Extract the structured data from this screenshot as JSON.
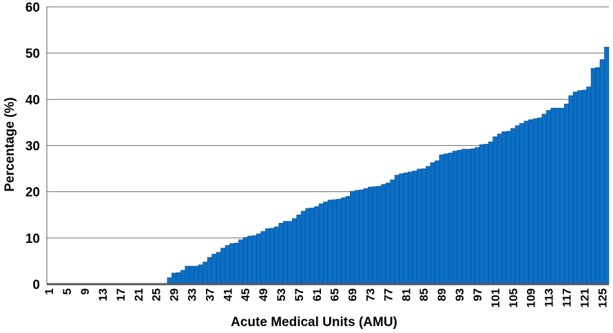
{
  "chart_data": {
    "type": "bar",
    "title": "",
    "xlabel": "Acute Medical Units (AMU)",
    "ylabel": "Percentage (%)",
    "ylim": [
      0,
      60
    ],
    "yticks": [
      0,
      10,
      20,
      30,
      40,
      50,
      60
    ],
    "xtick_labels": [
      "1",
      "5",
      "9",
      "13",
      "17",
      "21",
      "25",
      "29",
      "33",
      "37",
      "41",
      "45",
      "49",
      "53",
      "57",
      "61",
      "65",
      "69",
      "73",
      "77",
      "81",
      "85",
      "89",
      "93",
      "97",
      "101",
      "105",
      "109",
      "113",
      "117",
      "121",
      "125"
    ],
    "grid": true,
    "bar_color": "#0b6fc6",
    "bar_edge_color": "#0a4f8f",
    "categories": [
      1,
      2,
      3,
      4,
      5,
      6,
      7,
      8,
      9,
      10,
      11,
      12,
      13,
      14,
      15,
      16,
      17,
      18,
      19,
      20,
      21,
      22,
      23,
      24,
      25,
      26,
      27,
      28,
      29,
      30,
      31,
      32,
      33,
      34,
      35,
      36,
      37,
      38,
      39,
      40,
      41,
      42,
      43,
      44,
      45,
      46,
      47,
      48,
      49,
      50,
      51,
      52,
      53,
      54,
      55,
      56,
      57,
      58,
      59,
      60,
      61,
      62,
      63,
      64,
      65,
      66,
      67,
      68,
      69,
      70,
      71,
      72,
      73,
      74,
      75,
      76,
      77,
      78,
      79,
      80,
      81,
      82,
      83,
      84,
      85,
      86,
      87,
      88,
      89,
      90,
      91,
      92,
      93,
      94,
      95,
      96,
      97,
      98,
      99,
      100,
      101,
      102,
      103,
      104,
      105,
      106,
      107,
      108,
      109,
      110,
      111,
      112,
      113,
      114,
      115,
      116,
      117,
      118,
      119,
      120,
      121,
      122,
      123,
      124,
      125,
      126
    ],
    "values": [
      0,
      0,
      0,
      0,
      0,
      0,
      0,
      0,
      0,
      0,
      0,
      0,
      0,
      0,
      0,
      0,
      0,
      0,
      0,
      0,
      0,
      0,
      0,
      0,
      0,
      0,
      0,
      1.4,
      2.4,
      2.5,
      3.0,
      3.9,
      3.9,
      3.9,
      4.2,
      4.8,
      5.8,
      6.5,
      6.9,
      7.8,
      8.4,
      8.8,
      8.9,
      9.6,
      10.1,
      10.4,
      10.5,
      10.9,
      11.4,
      12.0,
      12.1,
      12.4,
      13.2,
      13.6,
      13.6,
      14.2,
      15.0,
      15.8,
      16.4,
      16.5,
      16.8,
      17.4,
      17.8,
      18.2,
      18.3,
      18.4,
      18.7,
      19.0,
      20.1,
      20.3,
      20.4,
      20.7,
      21.0,
      21.1,
      21.2,
      21.6,
      21.9,
      22.6,
      23.6,
      23.9,
      24.1,
      24.3,
      24.5,
      24.9,
      25.0,
      25.5,
      26.3,
      26.7,
      28.0,
      28.2,
      28.4,
      28.8,
      29.0,
      29.2,
      29.2,
      29.3,
      29.6,
      30.2,
      30.3,
      30.8,
      31.9,
      32.5,
      33.0,
      33.1,
      33.7,
      34.3,
      34.8,
      35.3,
      35.6,
      35.8,
      36.0,
      36.8,
      37.6,
      38.1,
      38.1,
      38.1,
      39.0,
      40.8,
      41.6,
      41.9,
      42.0,
      42.7,
      46.7,
      46.9,
      48.6,
      51.3
    ]
  }
}
